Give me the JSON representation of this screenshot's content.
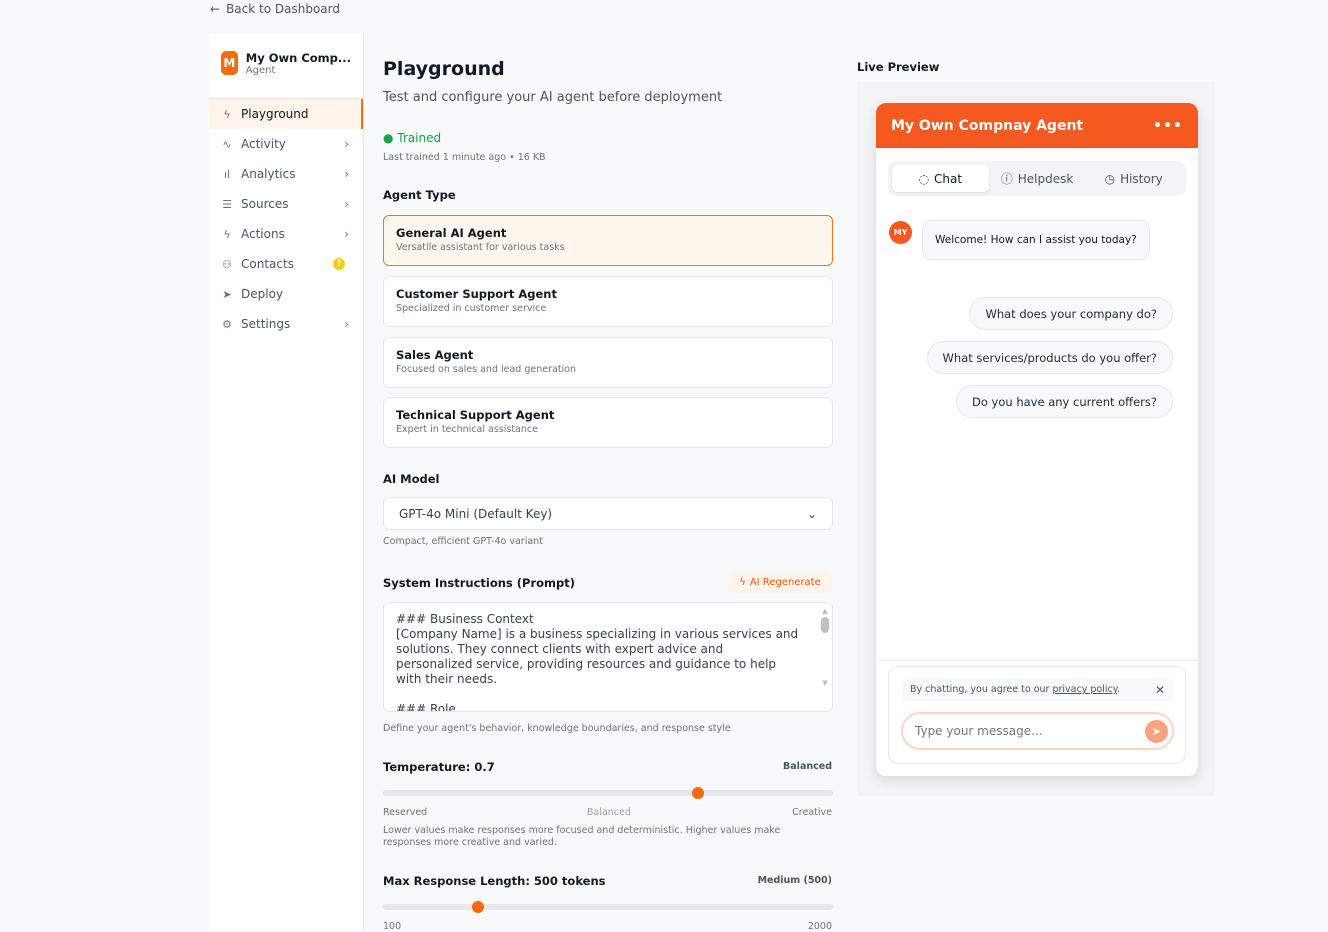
{
  "back": "Back to Dashboard",
  "brand": {
    "initial": "M",
    "name": "My Own Comp...",
    "subtitle": "Agent"
  },
  "nav": [
    {
      "label": "Playground",
      "icon": "bolt-icon",
      "active": true
    },
    {
      "label": "Activity",
      "icon": "activity-icon"
    },
    {
      "label": "Analytics",
      "icon": "bar-chart-icon"
    },
    {
      "label": "Sources",
      "icon": "database-icon"
    },
    {
      "label": "Actions",
      "icon": "bolt-icon"
    },
    {
      "label": "Contacts",
      "icon": "users-icon",
      "badge": "!"
    },
    {
      "label": "Deploy",
      "icon": "send-icon"
    },
    {
      "label": "Settings",
      "icon": "gear-icon"
    }
  ],
  "main": {
    "title": "Playground",
    "subtitle": "Test and configure your AI agent before deployment",
    "status": "Trained",
    "status_meta": "Last trained 1 minute ago • 16 KB",
    "agent_type_label": "Agent Type",
    "agent_types": [
      {
        "title": "General AI Agent",
        "desc": "Versatile assistant for various tasks",
        "selected": true
      },
      {
        "title": "Customer Support Agent",
        "desc": "Specialized in customer service"
      },
      {
        "title": "Sales Agent",
        "desc": "Focused on sales and lead generation"
      },
      {
        "title": "Technical Support Agent",
        "desc": "Expert in technical assistance"
      }
    ],
    "model_label": "AI Model",
    "model_value": "GPT-4o Mini (Default Key)",
    "model_hint": "Compact, efficient GPT-4o variant",
    "prompt_label": "System Instructions (Prompt)",
    "regen_label": "AI Regenerate",
    "prompt_value": "### Business Context\n[Company Name] is a business specializing in various services and solutions. They connect clients with expert advice and personalized service, providing resources and guidance to help with their needs.\n\n### Role\n- Primary Function: You are an AI chatbot who helps users with their",
    "prompt_hint": "Define your agent's behavior, knowledge boundaries, and response style",
    "temperature": {
      "label": "Temperature: 0.7",
      "value": 0.7,
      "min": 0,
      "max": 1,
      "mode": "Balanced",
      "left": "Reserved",
      "mid": "Balanced",
      "right": "Creative",
      "hint": "Lower values make responses more focused and deterministic. Higher values make responses more creative and varied."
    },
    "max_length": {
      "label": "Max Response Length: 500 tokens",
      "value": 500,
      "min": 100,
      "max": 2000,
      "mode": "Medium (500)",
      "left": "100",
      "right": "2000"
    }
  },
  "preview": {
    "label": "Live Preview",
    "title": "My Own Compnay Agent",
    "tabs": [
      "Chat",
      "Helpdesk",
      "History"
    ],
    "avatar": "MY",
    "welcome": "Welcome! How can I assist you today?",
    "suggestions": [
      "What does your company do?",
      "What services/products do you offer?",
      "Do you have any current offers?"
    ],
    "privacy_prefix": "By chatting, you agree to our ",
    "privacy_link": "privacy policy",
    "privacy_suffix": ".",
    "input_placeholder": "Type your message..."
  },
  "colors": {
    "accent": "#f96a0c",
    "header": "#f5591f",
    "trained": "#16a34a"
  }
}
